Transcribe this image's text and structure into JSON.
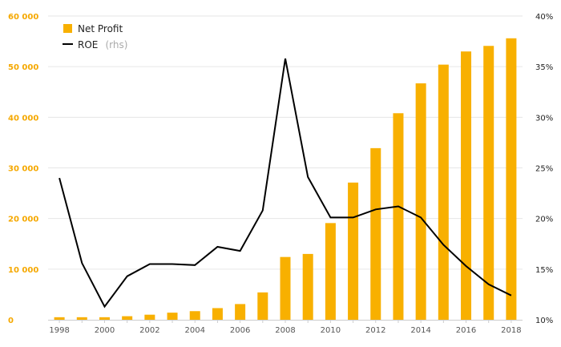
{
  "chart_data": {
    "type": "bar+line",
    "x": [
      "1998",
      "1999",
      "2000",
      "2001",
      "2002",
      "2003",
      "2004",
      "2005",
      "2006",
      "2007",
      "2008",
      "2009",
      "2010",
      "2011",
      "2012",
      "2013",
      "2014",
      "2015",
      "2016",
      "2017",
      "2018"
    ],
    "x_tick_labels": [
      "1998",
      "2000",
      "2002",
      "2004",
      "2006",
      "2008",
      "2010",
      "2012",
      "2014",
      "2016",
      "2018"
    ],
    "series": [
      {
        "name": "Net Profit",
        "kind": "bar",
        "axis": "left",
        "color": "#f8b000",
        "values": [
          500,
          500,
          500,
          700,
          1000,
          1400,
          1700,
          2300,
          3100,
          5400,
          12400,
          13000,
          19100,
          27100,
          33900,
          40800,
          46700,
          50400,
          53000,
          54100,
          55600
        ]
      },
      {
        "name": "ROE",
        "name_suffix": "(rhs)",
        "kind": "line",
        "axis": "right",
        "color": "#000000",
        "values": [
          24.0,
          15.6,
          11.3,
          14.3,
          15.5,
          15.5,
          15.4,
          17.2,
          16.8,
          20.8,
          35.8,
          24.1,
          20.1,
          20.1,
          20.9,
          21.2,
          20.1,
          17.4,
          15.3,
          13.5,
          12.4
        ]
      }
    ],
    "y_left": {
      "min": 0,
      "max": 60000,
      "ticks": [
        "0",
        "10 000",
        "20 000",
        "30 000",
        "40 000",
        "50 000",
        "60 000"
      ],
      "tick_values": [
        0,
        10000,
        20000,
        30000,
        40000,
        50000,
        60000
      ]
    },
    "y_right": {
      "min": 10,
      "max": 40,
      "ticks": [
        "10%",
        "15%",
        "20%",
        "25%",
        "30%",
        "35%",
        "40%"
      ],
      "tick_values": [
        10,
        15,
        20,
        25,
        30,
        35,
        40
      ]
    },
    "grid": true,
    "legend": "top-left"
  }
}
